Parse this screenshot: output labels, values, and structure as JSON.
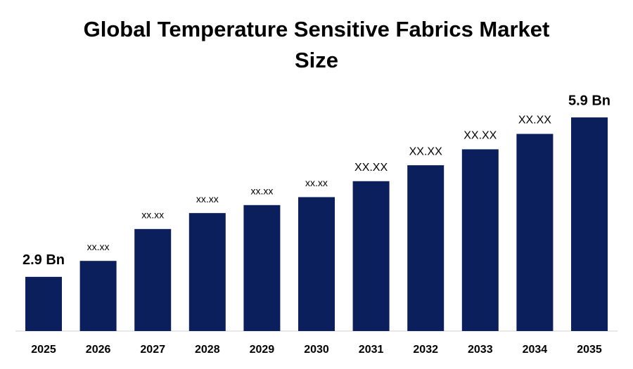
{
  "chart_data": {
    "type": "bar",
    "title": "Global Temperature Sensitive Fabrics Market Size",
    "categories": [
      "2025",
      "2026",
      "2027",
      "2028",
      "2029",
      "2030",
      "2031",
      "2032",
      "2033",
      "2034",
      "2035"
    ],
    "values": [
      2.9,
      3.2,
      3.8,
      4.1,
      4.25,
      4.4,
      4.7,
      5.0,
      5.3,
      5.59,
      5.9
    ],
    "value_labels": [
      "2.9 Bn",
      "xx.xx",
      "xx.xx",
      "xx.xx",
      "xx.xx",
      "xx.xx",
      "XX.XX",
      "XX.XX",
      "XX.XX",
      "XX.XX",
      "5.9 Bn"
    ],
    "color": "#0a1f5c",
    "ylim": [
      1.88,
      6.8
    ]
  }
}
